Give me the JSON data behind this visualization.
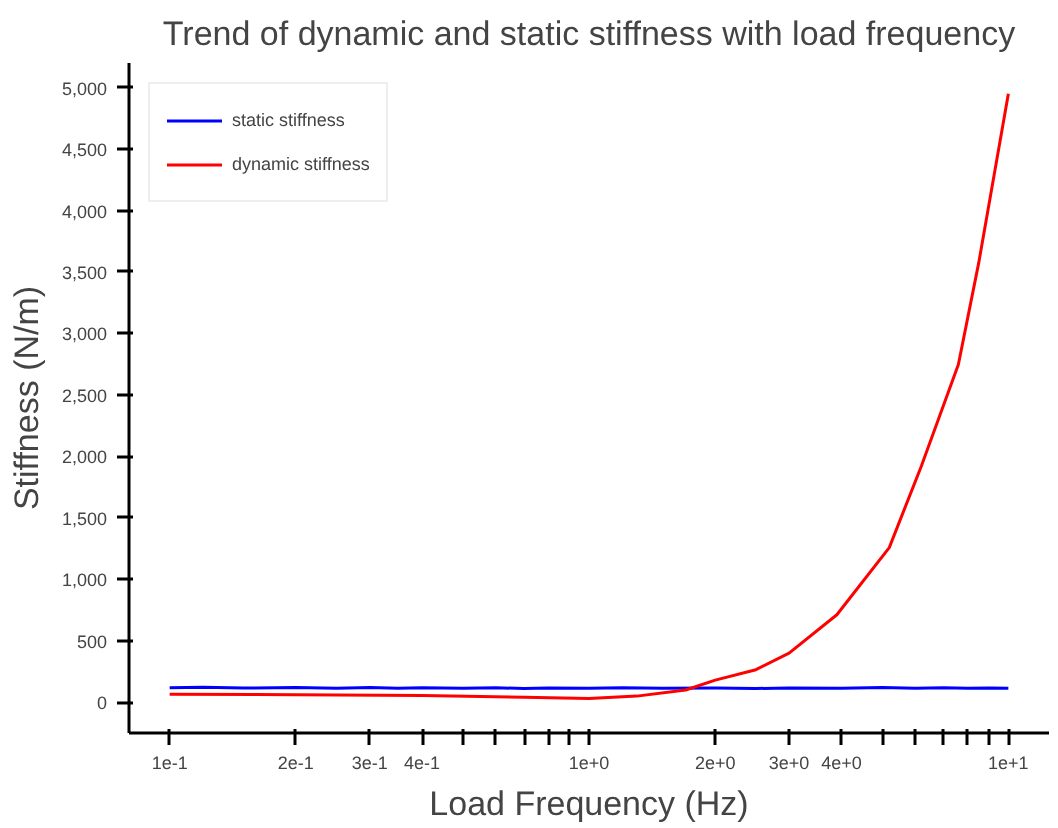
{
  "chart_data": {
    "type": "line",
    "title": "Trend of dynamic and static stiffness with load frequency",
    "xlabel": "Load Frequency (Hz)",
    "ylabel": "Stiffness (N/m)",
    "log": "x",
    "grid": false,
    "legend": "top left",
    "marker": "none",
    "line_style": "solid",
    "xlim": [
      0.08,
      12.5
    ],
    "ylim": [
      -250,
      5200
    ],
    "xticks": [
      {
        "value": 0.1,
        "label": "1e-1"
      },
      {
        "value": 0.2,
        "label": "2e-1"
      },
      {
        "value": 0.3,
        "label": "3e-1"
      },
      {
        "value": 0.4,
        "label": "4e-1"
      },
      {
        "value": 0.5,
        "label": null
      },
      {
        "value": 0.6,
        "label": null
      },
      {
        "value": 0.7,
        "label": null
      },
      {
        "value": 0.8,
        "label": null
      },
      {
        "value": 0.9,
        "label": null
      },
      {
        "value": 1,
        "label": "1e+0"
      },
      {
        "value": 2,
        "label": "2e+0"
      },
      {
        "value": 3,
        "label": "3e+0"
      },
      {
        "value": 4,
        "label": "4e+0"
      },
      {
        "value": 5,
        "label": null
      },
      {
        "value": 6,
        "label": null
      },
      {
        "value": 7,
        "label": null
      },
      {
        "value": 8,
        "label": null
      },
      {
        "value": 9,
        "label": null
      },
      {
        "value": 10,
        "label": "1e+1"
      }
    ],
    "yticks": [
      0,
      500,
      {
        "value": 1000,
        "label": "1,000"
      },
      {
        "value": 1500,
        "label": "1,500"
      },
      {
        "value": 2000,
        "label": "2,000"
      },
      {
        "value": 2500,
        "label": "2,500"
      },
      {
        "value": 3000,
        "label": "3,000"
      },
      {
        "value": 3500,
        "label": "3,500"
      },
      {
        "value": 4000,
        "label": "4,000"
      },
      {
        "value": 4500,
        "label": "4,500"
      },
      {
        "value": 5000,
        "label": "5,000"
      }
    ],
    "series": [
      {
        "name": "static stiffness",
        "color": "#0000ff",
        "x": [
          0.1,
          0.12,
          0.15,
          0.2,
          0.25,
          0.3,
          0.35,
          0.4,
          0.5,
          0.6,
          0.7,
          0.8,
          1,
          1.2,
          1.5,
          2,
          2.5,
          3,
          4,
          5,
          6,
          7,
          8,
          9,
          10
        ],
        "values": [
          118,
          122,
          116,
          120,
          114,
          121,
          115,
          119,
          113,
          118,
          112,
          117,
          114,
          118,
          113,
          116,
          112,
          117,
          114,
          120,
          113,
          118,
          114,
          117,
          115
        ]
      },
      {
        "name": "dynamic stiffness",
        "color": "#ff0000",
        "x": [
          0.1,
          0.2,
          0.4,
          0.7,
          1,
          1.3,
          1.7,
          2,
          2.5,
          3,
          3.9,
          5.2,
          6.2,
          7.6,
          8.5,
          10
        ],
        "values": [
          65,
          62,
          55,
          40,
          30,
          50,
          100,
          180,
          265,
          400,
          712,
          1258,
          1920,
          2748,
          3576,
          4950
        ]
      }
    ]
  }
}
